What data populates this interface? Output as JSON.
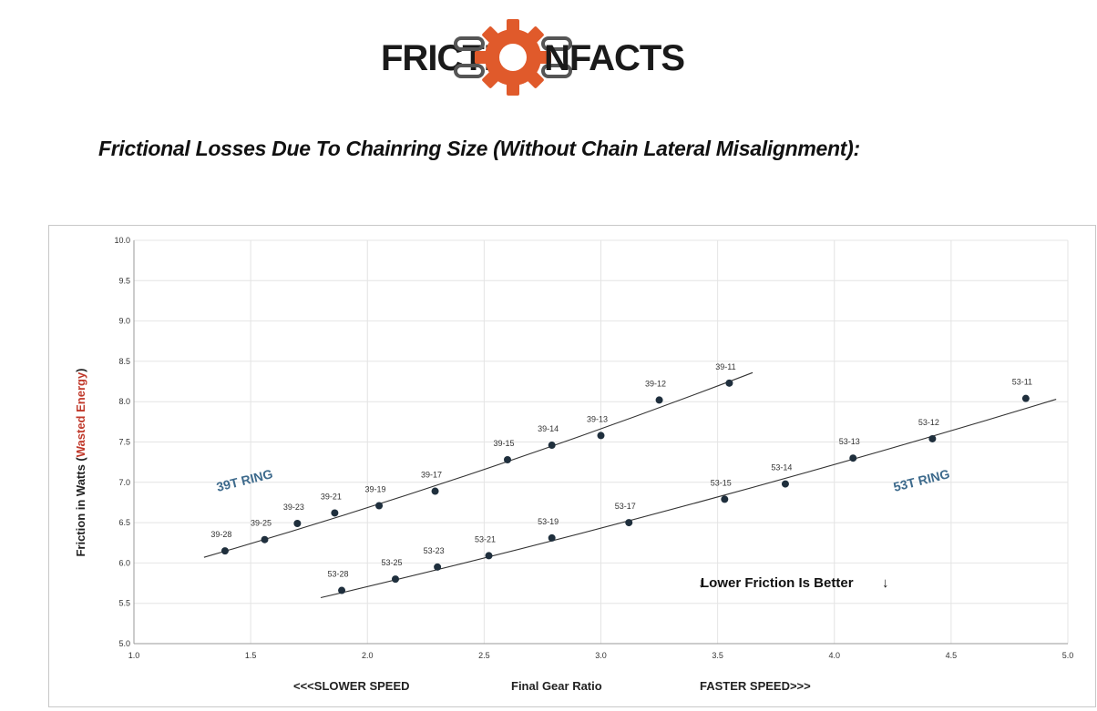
{
  "logo": {
    "left_text": "FRICTI",
    "right_text": "NFACTS",
    "gear_color": "#e05a2b",
    "text_color": "#1a1a1a"
  },
  "headline": "Frictional Losses Due To Chainring Size (Without Chain Lateral Misalignment):",
  "chart_data": {
    "type": "scatter",
    "xlim": [
      1.0,
      5.0
    ],
    "ylim": [
      5.0,
      10.0
    ],
    "xticks": [
      "1.0",
      "1.5",
      "2.0",
      "2.5",
      "3.0",
      "3.5",
      "4.0",
      "4.5",
      "5.0"
    ],
    "yticks": [
      "5.0",
      "5.5",
      "6.0",
      "6.5",
      "7.0",
      "7.5",
      "8.0",
      "8.5",
      "9.0",
      "9.5",
      "10.0"
    ],
    "grid": true,
    "ylabel_prefix": "Friction in Watts (",
    "ylabel_highlight": "Wasted Energy",
    "ylabel_suffix": ")",
    "ylabel_highlight_color": "#c0392b",
    "xlabel": "Final Gear Ratio",
    "xlabel_left": "<<<SLOWER SPEED",
    "xlabel_right": "FASTER SPEED>>>",
    "annotation": "Lower Friction Is Better",
    "point_color": "#1f2f3d",
    "series": [
      {
        "name": "39T RING",
        "label_color": "#3d6a8c",
        "points": [
          {
            "label": "39-28",
            "x": 1.39,
            "y": 6.15
          },
          {
            "label": "39-25",
            "x": 1.56,
            "y": 6.29
          },
          {
            "label": "39-23",
            "x": 1.7,
            "y": 6.49
          },
          {
            "label": "39-21",
            "x": 1.86,
            "y": 6.62
          },
          {
            "label": "39-19",
            "x": 2.05,
            "y": 6.71
          },
          {
            "label": "39-17",
            "x": 2.29,
            "y": 6.89
          },
          {
            "label": "39-15",
            "x": 2.6,
            "y": 7.28
          },
          {
            "label": "39-14",
            "x": 2.79,
            "y": 7.46
          },
          {
            "label": "39-13",
            "x": 3.0,
            "y": 7.58
          },
          {
            "label": "39-12",
            "x": 3.25,
            "y": 8.02
          },
          {
            "label": "39-11",
            "x": 3.55,
            "y": 8.23
          }
        ],
        "trend": {
          "x": [
            1.3,
            3.65
          ],
          "y": [
            6.07,
            8.36
          ]
        }
      },
      {
        "name": "53T RING",
        "label_color": "#3d6a8c",
        "points": [
          {
            "label": "53-28",
            "x": 1.89,
            "y": 5.66
          },
          {
            "label": "53-25",
            "x": 2.12,
            "y": 5.8
          },
          {
            "label": "53-23",
            "x": 2.3,
            "y": 5.95
          },
          {
            "label": "53-21",
            "x": 2.52,
            "y": 6.09
          },
          {
            "label": "53-19",
            "x": 2.79,
            "y": 6.31
          },
          {
            "label": "53-17",
            "x": 3.12,
            "y": 6.5
          },
          {
            "label": "53-15",
            "x": 3.53,
            "y": 6.79
          },
          {
            "label": "53-14",
            "x": 3.79,
            "y": 6.98
          },
          {
            "label": "53-13",
            "x": 4.08,
            "y": 7.3
          },
          {
            "label": "53-12",
            "x": 4.42,
            "y": 7.54
          },
          {
            "label": "53-11",
            "x": 4.82,
            "y": 8.04
          }
        ],
        "trend": {
          "x": [
            1.8,
            4.95
          ],
          "y": [
            5.57,
            8.03
          ]
        }
      }
    ]
  }
}
